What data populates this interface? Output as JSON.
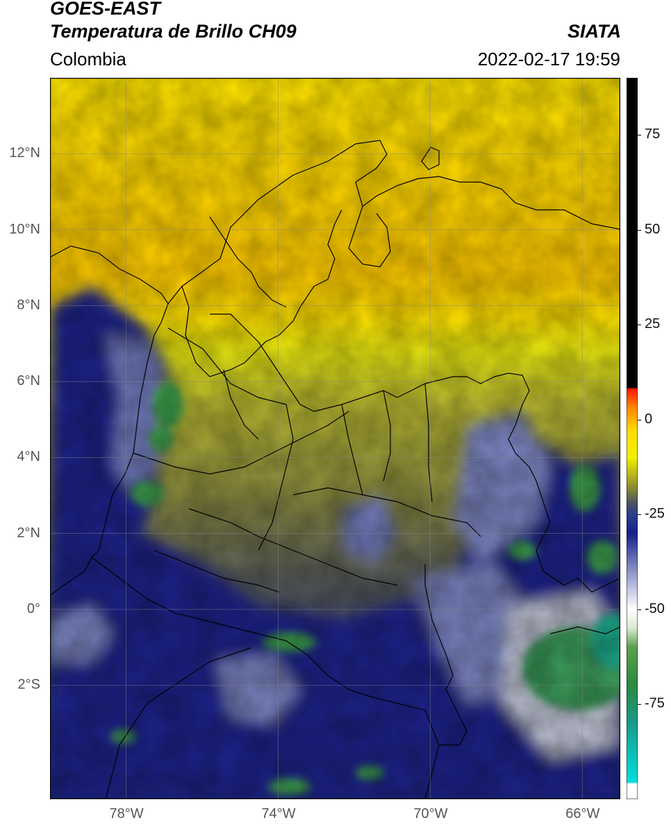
{
  "header": {
    "satellite": "GOES-EAST",
    "product": "Temperatura de Brillo CH09",
    "region": "Colombia",
    "source": "SIATA",
    "datetime": "2022-02-17 19:59"
  },
  "map": {
    "lon_range": [
      -80,
      -65
    ],
    "lat_range": [
      -5.0,
      14.0
    ],
    "grid": true,
    "lat_labels": [
      {
        "v": 12,
        "t": "12°N"
      },
      {
        "v": 10,
        "t": "10°N"
      },
      {
        "v": 8,
        "t": "8°N"
      },
      {
        "v": 6,
        "t": "6°N"
      },
      {
        "v": 4,
        "t": "4°N"
      },
      {
        "v": 2,
        "t": "2°N"
      },
      {
        "v": 0,
        "t": "0°"
      },
      {
        "v": -2,
        "t": "2°S"
      }
    ],
    "lon_labels": [
      {
        "v": -78,
        "t": "78°W"
      },
      {
        "v": -74,
        "t": "74°W"
      },
      {
        "v": -70,
        "t": "70°W"
      },
      {
        "v": -66,
        "t": "66°W"
      }
    ]
  },
  "colorbar": {
    "range": [
      -100,
      90
    ],
    "ticks": [
      {
        "v": 75,
        "t": "75"
      },
      {
        "v": 50,
        "t": "50"
      },
      {
        "v": 25,
        "t": "25"
      },
      {
        "v": 0,
        "t": "0"
      },
      {
        "v": -25,
        "t": "-25"
      },
      {
        "v": -50,
        "t": "-50"
      },
      {
        "v": -75,
        "t": "-75"
      }
    ],
    "stops": [
      {
        "v": -100,
        "c": "#ffffff"
      },
      {
        "v": -96,
        "c": "#ffffff"
      },
      {
        "v": -95.5,
        "c": "#00e0e0"
      },
      {
        "v": -80,
        "c": "#1a9a8a"
      },
      {
        "v": -70,
        "c": "#2a8a40"
      },
      {
        "v": -60,
        "c": "#5aa04a"
      },
      {
        "v": -55,
        "c": "#d8e8d0"
      },
      {
        "v": -50,
        "c": "#ffffff"
      },
      {
        "v": -40,
        "c": "#8c94c8"
      },
      {
        "v": -30,
        "c": "#16208a"
      },
      {
        "v": -25,
        "c": "#2a3f8a"
      },
      {
        "v": -22,
        "c": "#4a5560"
      },
      {
        "v": -18,
        "c": "#8a8a30"
      },
      {
        "v": -10,
        "c": "#f0f000"
      },
      {
        "v": -3,
        "c": "#ffdc00"
      },
      {
        "v": 3,
        "c": "#ff8800"
      },
      {
        "v": 8,
        "c": "#ff1a00"
      },
      {
        "v": 8.5,
        "c": "#000000"
      },
      {
        "v": 90,
        "c": "#000000"
      }
    ]
  }
}
